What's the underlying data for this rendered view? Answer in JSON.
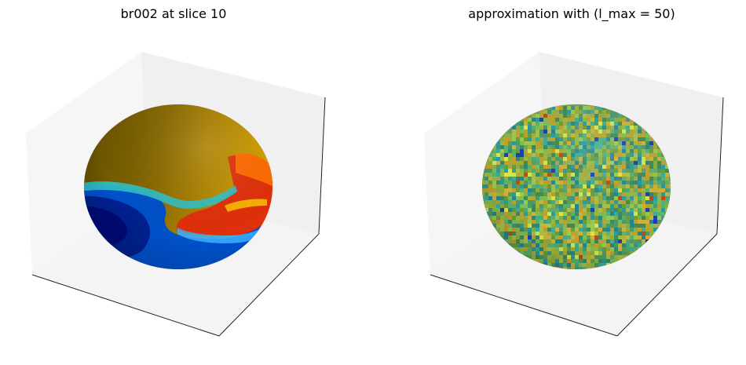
{
  "chart_data": [
    {
      "type": "3d-surface",
      "title": "br002 at slice 10",
      "surface": "sphere",
      "colormap": "jet",
      "axes_ticks": false,
      "grid": false,
      "colors": {
        "pane_back": "#f0f0f0",
        "pane_left": "#f6f6f6",
        "pane_floor": "#f4f4f4",
        "edge": "#222222"
      }
    },
    {
      "type": "3d-surface",
      "title": "approximation with (l_max = 50)",
      "surface": "sphere",
      "colormap": "viridis-like noisy",
      "axes_ticks": false,
      "grid": false,
      "colors": {
        "pane_back": "#f0f0f0",
        "pane_left": "#f6f6f6",
        "pane_floor": "#f4f4f4",
        "edge": "#222222"
      }
    }
  ]
}
